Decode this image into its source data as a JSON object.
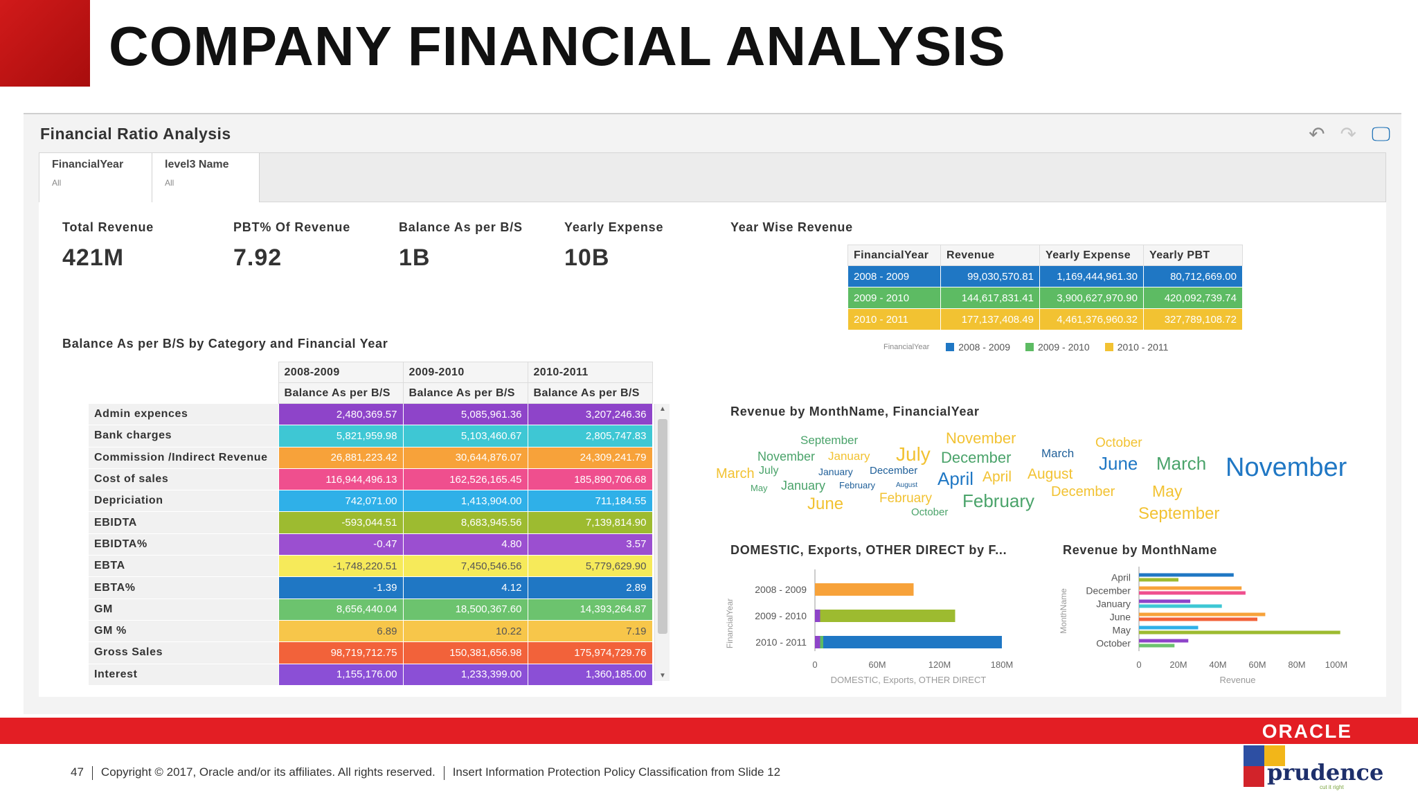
{
  "slide": {
    "title": "COMPANY FINANCIAL ANALYSIS",
    "footer": {
      "page": "47",
      "copyright": "Copyright © 2017, Oracle and/or its affiliates. All rights reserved.",
      "policy": "Insert Information Protection Policy Classification from Slide 12"
    },
    "oracle_logo": "ORACLE",
    "prudence_logo": "prudence",
    "prudence_tag": "cut it right",
    "colors": {
      "oracle_red": "#e31e24",
      "corner_red": "#c8161b"
    }
  },
  "dashboard": {
    "title": "Financial Ratio Analysis",
    "toolbar": {
      "undo_icon": "undo-icon",
      "redo_icon": "redo-icon",
      "present_icon": "presentation-icon"
    },
    "filters": [
      {
        "label": "FinancialYear",
        "value": "All"
      },
      {
        "label": "level3 Name",
        "value": "All"
      }
    ],
    "kpis": [
      {
        "label": "Total Revenue",
        "value": "421M"
      },
      {
        "label": "PBT% Of Revenue",
        "value": "7.92"
      },
      {
        "label": "Balance As per B/S",
        "value": "1B"
      },
      {
        "label": "Yearly Expense",
        "value": "10B"
      }
    ],
    "balance_table": {
      "title": "Balance As per B/S by Category and Financial Year",
      "years": [
        "2008-2009",
        "2009-2010",
        "2010-2011"
      ],
      "measure": "Balance As per B/S",
      "rows": [
        {
          "label": "Admin expences",
          "values": [
            "2,480,369.57",
            "5,085,961.36",
            "3,207,246.36"
          ],
          "color": "#8e44c9"
        },
        {
          "label": "Bank charges",
          "values": [
            "5,821,959.98",
            "5,103,460.67",
            "2,805,747.83"
          ],
          "color": "#3ec7d4"
        },
        {
          "label": "Commission /Indirect Revenue",
          "values": [
            "26,881,223.42",
            "30,644,876.07",
            "24,309,241.79"
          ],
          "color": "#f7a23a"
        },
        {
          "label": "Cost of sales",
          "values": [
            "116,944,496.13",
            "162,526,165.45",
            "185,890,706.68"
          ],
          "color": "#ef4f8e"
        },
        {
          "label": "Depriciation",
          "values": [
            "742,071.00",
            "1,413,904.00",
            "711,184.55"
          ],
          "color": "#2fb0e8"
        },
        {
          "label": "EBIDTA",
          "values": [
            "-593,044.51",
            "8,683,945.56",
            "7,139,814.90"
          ],
          "color": "#9dbb30"
        },
        {
          "label": "EBIDTA%",
          "values": [
            "-0.47",
            "4.80",
            "3.57"
          ],
          "color": "#9b4fd0"
        },
        {
          "label": "EBTA",
          "values": [
            "-1,748,220.51",
            "7,450,546.56",
            "5,779,629.90"
          ],
          "color": "#f6ea5a"
        },
        {
          "label": "EBTA%",
          "values": [
            "-1.39",
            "4.12",
            "2.89"
          ],
          "color": "#1f77c4"
        },
        {
          "label": "GM",
          "values": [
            "8,656,440.04",
            "18,500,367.60",
            "14,393,264.87"
          ],
          "color": "#6cc36e"
        },
        {
          "label": "GM %",
          "values": [
            "6.89",
            "10.22",
            "7.19"
          ],
          "color": "#f7c64a"
        },
        {
          "label": "Gross Sales",
          "values": [
            "98,719,712.75",
            "150,381,656.98",
            "175,974,729.76"
          ],
          "color": "#f2623a"
        },
        {
          "label": "Interest",
          "values": [
            "1,155,176.00",
            "1,233,399.00",
            "1,360,185.00"
          ],
          "color": "#8b4fd6"
        }
      ]
    },
    "year_wise": {
      "title": "Year Wise Revenue",
      "columns": [
        "FinancialYear",
        "Revenue",
        "Yearly Expense",
        "Yearly PBT"
      ],
      "rows": [
        {
          "year": "2008 - 2009",
          "revenue": "99,030,570.81",
          "expense": "1,169,444,961.30",
          "pbt": "80,712,669.00",
          "color": "#1f77c4"
        },
        {
          "year": "2009 - 2010",
          "revenue": "144,617,831.41",
          "expense": "3,900,627,970.90",
          "pbt": "420,092,739.74",
          "color": "#5dbb63"
        },
        {
          "year": "2010 - 2011",
          "revenue": "177,137,408.49",
          "expense": "4,461,376,960.32",
          "pbt": "327,789,108.72",
          "color": "#f2c232"
        }
      ],
      "legend_title": "FinancialYear"
    },
    "word_cloud": {
      "title": "Revenue by MonthName, FinancialYear",
      "words": [
        {
          "t": "September",
          "c": "#4aa36a",
          "s": 17
        },
        {
          "t": "November",
          "c": "#f2c232",
          "s": 22
        },
        {
          "t": "October",
          "c": "#f2c232",
          "s": 19
        },
        {
          "t": "November",
          "c": "#4aa36a",
          "s": 18
        },
        {
          "t": "January",
          "c": "#f2c232",
          "s": 17
        },
        {
          "t": "July",
          "c": "#f2c232",
          "s": 28
        },
        {
          "t": "December",
          "c": "#4aa36a",
          "s": 22
        },
        {
          "t": "March",
          "c": "#1f5f99",
          "s": 17
        },
        {
          "t": "June",
          "c": "#1f77c4",
          "s": 26
        },
        {
          "t": "March",
          "c": "#4aa36a",
          "s": 26
        },
        {
          "t": "November",
          "c": "#1f77c4",
          "s": 38
        },
        {
          "t": "March",
          "c": "#f2c232",
          "s": 20
        },
        {
          "t": "July",
          "c": "#4aa36a",
          "s": 16
        },
        {
          "t": "January",
          "c": "#1f5f99",
          "s": 14
        },
        {
          "t": "December",
          "c": "#1f5f99",
          "s": 15
        },
        {
          "t": "April",
          "c": "#1f77c4",
          "s": 26
        },
        {
          "t": "April",
          "c": "#f2c232",
          "s": 21
        },
        {
          "t": "August",
          "c": "#f2c232",
          "s": 21
        },
        {
          "t": "May",
          "c": "#4aa36a",
          "s": 13
        },
        {
          "t": "January",
          "c": "#4aa36a",
          "s": 18
        },
        {
          "t": "February",
          "c": "#1f5f99",
          "s": 13
        },
        {
          "t": "August",
          "c": "#1f5f99",
          "s": 10
        },
        {
          "t": "February",
          "c": "#f2c232",
          "s": 19
        },
        {
          "t": "February",
          "c": "#4aa36a",
          "s": 26
        },
        {
          "t": "December",
          "c": "#f2c232",
          "s": 20
        },
        {
          "t": "May",
          "c": "#f2c232",
          "s": 23
        },
        {
          "t": "June",
          "c": "#f2c232",
          "s": 24
        },
        {
          "t": "October",
          "c": "#4aa36a",
          "s": 15
        },
        {
          "t": "September",
          "c": "#f2c232",
          "s": 24
        }
      ]
    }
  },
  "chart_data": [
    {
      "type": "bar",
      "orientation": "horizontal",
      "stacked": true,
      "title": "DOMESTIC, Exports, OTHER DIRECT by F...",
      "xlabel": "DOMESTIC, Exports, OTHER DIRECT",
      "ylabel": "FinancialYear",
      "categories": [
        "2008 - 2009",
        "2009 - 2010",
        "2010 - 2011"
      ],
      "series": [
        {
          "values": [
            0,
            5,
            5
          ],
          "color": "#8e44c9"
        },
        {
          "values": [
            0,
            0,
            3
          ],
          "color": "#5dbb63"
        },
        {
          "values": [
            95,
            0,
            0
          ],
          "color": "#f7a23a"
        },
        {
          "values": [
            0,
            130,
            0
          ],
          "color": "#9dbb30"
        },
        {
          "values": [
            0,
            0,
            172
          ],
          "color": "#1f77c4"
        }
      ],
      "xlim": [
        0,
        180
      ],
      "xticks": [
        "0",
        "60M",
        "120M",
        "180M"
      ],
      "tick_values": [
        0,
        60,
        120,
        180
      ]
    },
    {
      "type": "bar",
      "orientation": "horizontal",
      "title": "Revenue by MonthName",
      "xlabel": "Revenue",
      "ylabel": "MonthName",
      "categories": [
        "April",
        "December",
        "January",
        "June",
        "May",
        "October"
      ],
      "bars_per_category": [
        [
          {
            "v": 48,
            "c": "#1f77c4"
          },
          {
            "v": 20,
            "c": "#9dbb30"
          }
        ],
        [
          {
            "v": 52,
            "c": "#f7a23a"
          },
          {
            "v": 54,
            "c": "#ef4f8e"
          }
        ],
        [
          {
            "v": 26,
            "c": "#8e44c9"
          },
          {
            "v": 42,
            "c": "#3ec7d4"
          }
        ],
        [
          {
            "v": 64,
            "c": "#f7a23a"
          },
          {
            "v": 60,
            "c": "#f2623a"
          }
        ],
        [
          {
            "v": 30,
            "c": "#2fb0e8"
          },
          {
            "v": 102,
            "c": "#9dbb30"
          }
        ],
        [
          {
            "v": 25,
            "c": "#8e44c9"
          },
          {
            "v": 18,
            "c": "#6cc36e"
          }
        ]
      ],
      "xlim": [
        0,
        100
      ],
      "xticks": [
        "0",
        "20M",
        "40M",
        "60M",
        "80M",
        "100M"
      ],
      "tick_values": [
        0,
        20,
        40,
        60,
        80,
        100
      ]
    }
  ]
}
